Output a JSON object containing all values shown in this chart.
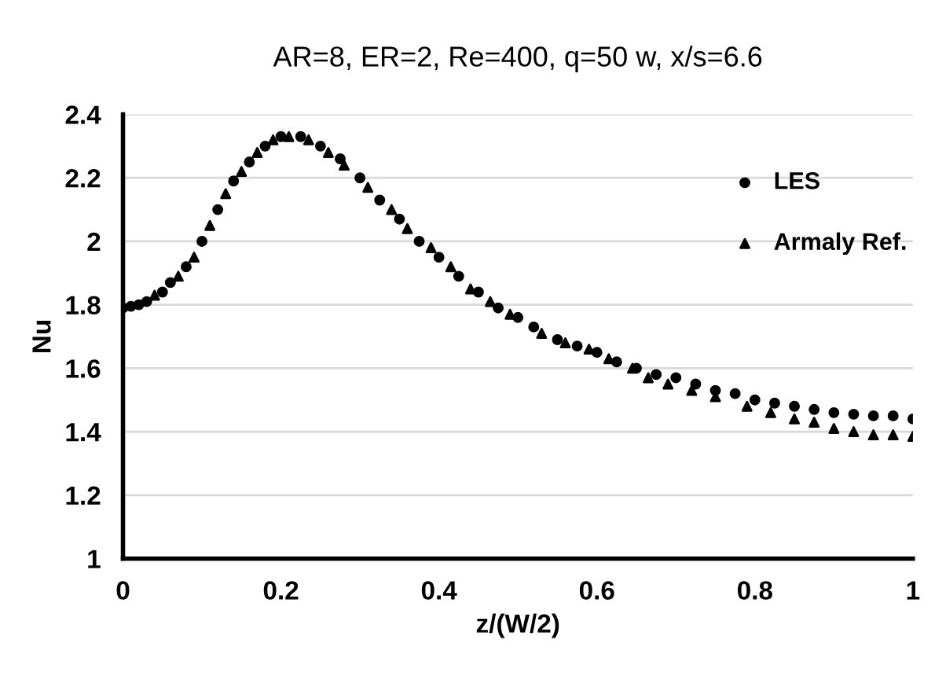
{
  "chart_data": {
    "type": "scatter",
    "title": "AR=8, ER=2, Re=400, q=50 w, x/s=6.6",
    "xlabel": "z/(W/2)",
    "ylabel": "Nu",
    "xlim": [
      0,
      1
    ],
    "xticks": [
      0,
      0.2,
      0.4,
      0.6,
      0.8,
      1
    ],
    "ylim": [
      1,
      2.4
    ],
    "yticks": [
      1,
      1.2,
      1.4,
      1.6,
      1.8,
      2,
      2.2,
      2.4
    ],
    "grid": "y",
    "legend": "right",
    "series": [
      {
        "name": "LES",
        "color": "#000000",
        "marker": "circle",
        "x": [
          0,
          0.01,
          0.02,
          0.03,
          0.05,
          0.06,
          0.08,
          0.1,
          0.12,
          0.14,
          0.16,
          0.18,
          0.2,
          0.225,
          0.25,
          0.275,
          0.3,
          0.325,
          0.35,
          0.375,
          0.4,
          0.425,
          0.45,
          0.475,
          0.5,
          0.52,
          0.55,
          0.575,
          0.6,
          0.625,
          0.65,
          0.675,
          0.7,
          0.725,
          0.75,
          0.775,
          0.8,
          0.825,
          0.85,
          0.875,
          0.9,
          0.925,
          0.95,
          0.975,
          1.0
        ],
        "values": [
          1.79,
          1.795,
          1.8,
          1.81,
          1.84,
          1.87,
          1.92,
          2.0,
          2.1,
          2.19,
          2.25,
          2.3,
          2.33,
          2.33,
          2.3,
          2.26,
          2.2,
          2.13,
          2.07,
          2.0,
          1.95,
          1.89,
          1.84,
          1.79,
          1.76,
          1.73,
          1.69,
          1.67,
          1.65,
          1.62,
          1.6,
          1.58,
          1.57,
          1.55,
          1.53,
          1.52,
          1.5,
          1.49,
          1.48,
          1.47,
          1.46,
          1.455,
          1.45,
          1.45,
          1.44
        ]
      },
      {
        "name": "Armaly Ref.",
        "color": "#000000",
        "marker": "triangle",
        "x": [
          0.04,
          0.07,
          0.09,
          0.11,
          0.13,
          0.15,
          0.17,
          0.19,
          0.21,
          0.235,
          0.26,
          0.28,
          0.31,
          0.34,
          0.36,
          0.39,
          0.415,
          0.44,
          0.465,
          0.49,
          0.53,
          0.56,
          0.59,
          0.615,
          0.645,
          0.665,
          0.69,
          0.72,
          0.75,
          0.79,
          0.82,
          0.85,
          0.875,
          0.9,
          0.925,
          0.95,
          0.975,
          1.0
        ],
        "values": [
          1.83,
          1.89,
          1.95,
          2.05,
          2.15,
          2.22,
          2.28,
          2.32,
          2.33,
          2.32,
          2.28,
          2.24,
          2.17,
          2.1,
          2.04,
          1.98,
          1.92,
          1.85,
          1.81,
          1.77,
          1.71,
          1.68,
          1.66,
          1.63,
          1.6,
          1.57,
          1.55,
          1.53,
          1.51,
          1.48,
          1.46,
          1.44,
          1.43,
          1.41,
          1.4,
          1.39,
          1.39,
          1.385
        ]
      }
    ]
  }
}
